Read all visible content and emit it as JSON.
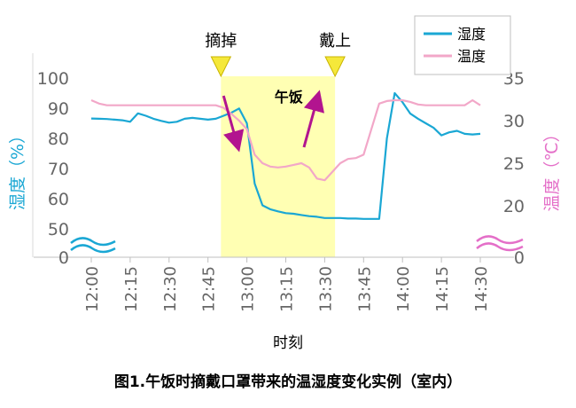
{
  "chart_data": {
    "type": "line",
    "caption": "图1.午饭时摘戴口罩带来的温湿度变化实例（室内）",
    "xlabel": "时刻",
    "ylabel_left": "湿度（%）",
    "ylabel_right": "温度（℃）",
    "x_ticks": [
      "12:00",
      "12:15",
      "12:30",
      "12:45",
      "13:00",
      "13:15",
      "13:30",
      "13:45",
      "14:00",
      "14:15",
      "14:30"
    ],
    "y_left_ticks": [
      0,
      50,
      60,
      70,
      80,
      90,
      100
    ],
    "y_right_ticks": [
      0,
      20,
      25,
      30,
      35
    ],
    "y_left_break": "0–50 (broken axis)",
    "y_right_break": "0–20 (broken axis)",
    "legend": [
      "湿度",
      "温度"
    ],
    "legend_position": "top-right",
    "series": [
      {
        "name": "湿度",
        "axis": "left",
        "color": "#1AA7D4",
        "x": [
          "12:00",
          "12:03",
          "12:06",
          "12:09",
          "12:12",
          "12:15",
          "12:18",
          "12:21",
          "12:24",
          "12:27",
          "12:30",
          "12:33",
          "12:36",
          "12:39",
          "12:42",
          "12:45",
          "12:48",
          "12:51",
          "12:54",
          "12:57",
          "13:00",
          "13:03",
          "13:06",
          "13:09",
          "13:12",
          "13:15",
          "13:18",
          "13:21",
          "13:24",
          "13:27",
          "13:30",
          "13:33",
          "13:36",
          "13:39",
          "13:42",
          "13:45",
          "13:48",
          "13:51",
          "13:54",
          "13:57",
          "14:00",
          "14:03",
          "14:06",
          "14:09",
          "14:12",
          "14:15",
          "14:18",
          "14:21",
          "14:24",
          "14:27",
          "14:30"
        ],
        "values": [
          86.6,
          86.5,
          86.4,
          86.2,
          86.0,
          85.5,
          88.3,
          87.5,
          86.5,
          85.8,
          85.2,
          85.5,
          86.5,
          86.8,
          86.5,
          86.2,
          86.5,
          87.5,
          88.5,
          89.9,
          85.0,
          65.0,
          57.8,
          56.5,
          55.8,
          55.2,
          55.0,
          54.6,
          54.2,
          54.0,
          53.6,
          53.6,
          53.6,
          53.4,
          53.4,
          53.3,
          53.3,
          53.3,
          80.0,
          95.0,
          92.0,
          88.2,
          86.5,
          85.0,
          83.5,
          81.0,
          82.0,
          82.5,
          81.5,
          81.3,
          81.5
        ]
      },
      {
        "name": "温度",
        "axis": "right",
        "color": "#F2A7C8",
        "x": [
          "12:00",
          "12:03",
          "12:06",
          "12:09",
          "12:12",
          "12:15",
          "12:18",
          "12:21",
          "12:24",
          "12:27",
          "12:30",
          "12:33",
          "12:36",
          "12:39",
          "12:42",
          "12:45",
          "12:48",
          "12:51",
          "12:54",
          "12:57",
          "13:00",
          "13:03",
          "13:06",
          "13:09",
          "13:12",
          "13:15",
          "13:18",
          "13:21",
          "13:24",
          "13:27",
          "13:30",
          "13:33",
          "13:36",
          "13:39",
          "13:42",
          "13:45",
          "13:48",
          "13:51",
          "13:54",
          "13:57",
          "14:00",
          "14:03",
          "14:06",
          "14:09",
          "14:12",
          "14:15",
          "14:18",
          "14:21",
          "14:24",
          "14:27",
          "14:30"
        ],
        "values": [
          32.4,
          32.0,
          31.8,
          31.8,
          31.8,
          31.8,
          31.8,
          31.8,
          31.8,
          31.8,
          31.8,
          31.8,
          31.8,
          31.8,
          31.8,
          31.8,
          31.8,
          31.5,
          30.8,
          30.0,
          29.0,
          26.0,
          25.0,
          24.6,
          24.5,
          24.6,
          24.8,
          25.0,
          24.5,
          23.2,
          23.0,
          24.0,
          25.0,
          25.5,
          25.6,
          26.0,
          29.0,
          32.0,
          32.3,
          32.4,
          32.4,
          32.2,
          31.9,
          31.8,
          31.8,
          31.8,
          31.8,
          31.8,
          31.8,
          32.4,
          31.8
        ]
      }
    ],
    "highlight": {
      "label": "午饭",
      "from": "12:50",
      "to": "13:34",
      "color": "#FFFFB3"
    },
    "annotations": [
      {
        "text": "摘掉",
        "at": "12:50"
      },
      {
        "text": "戴上",
        "at": "13:34"
      }
    ]
  }
}
